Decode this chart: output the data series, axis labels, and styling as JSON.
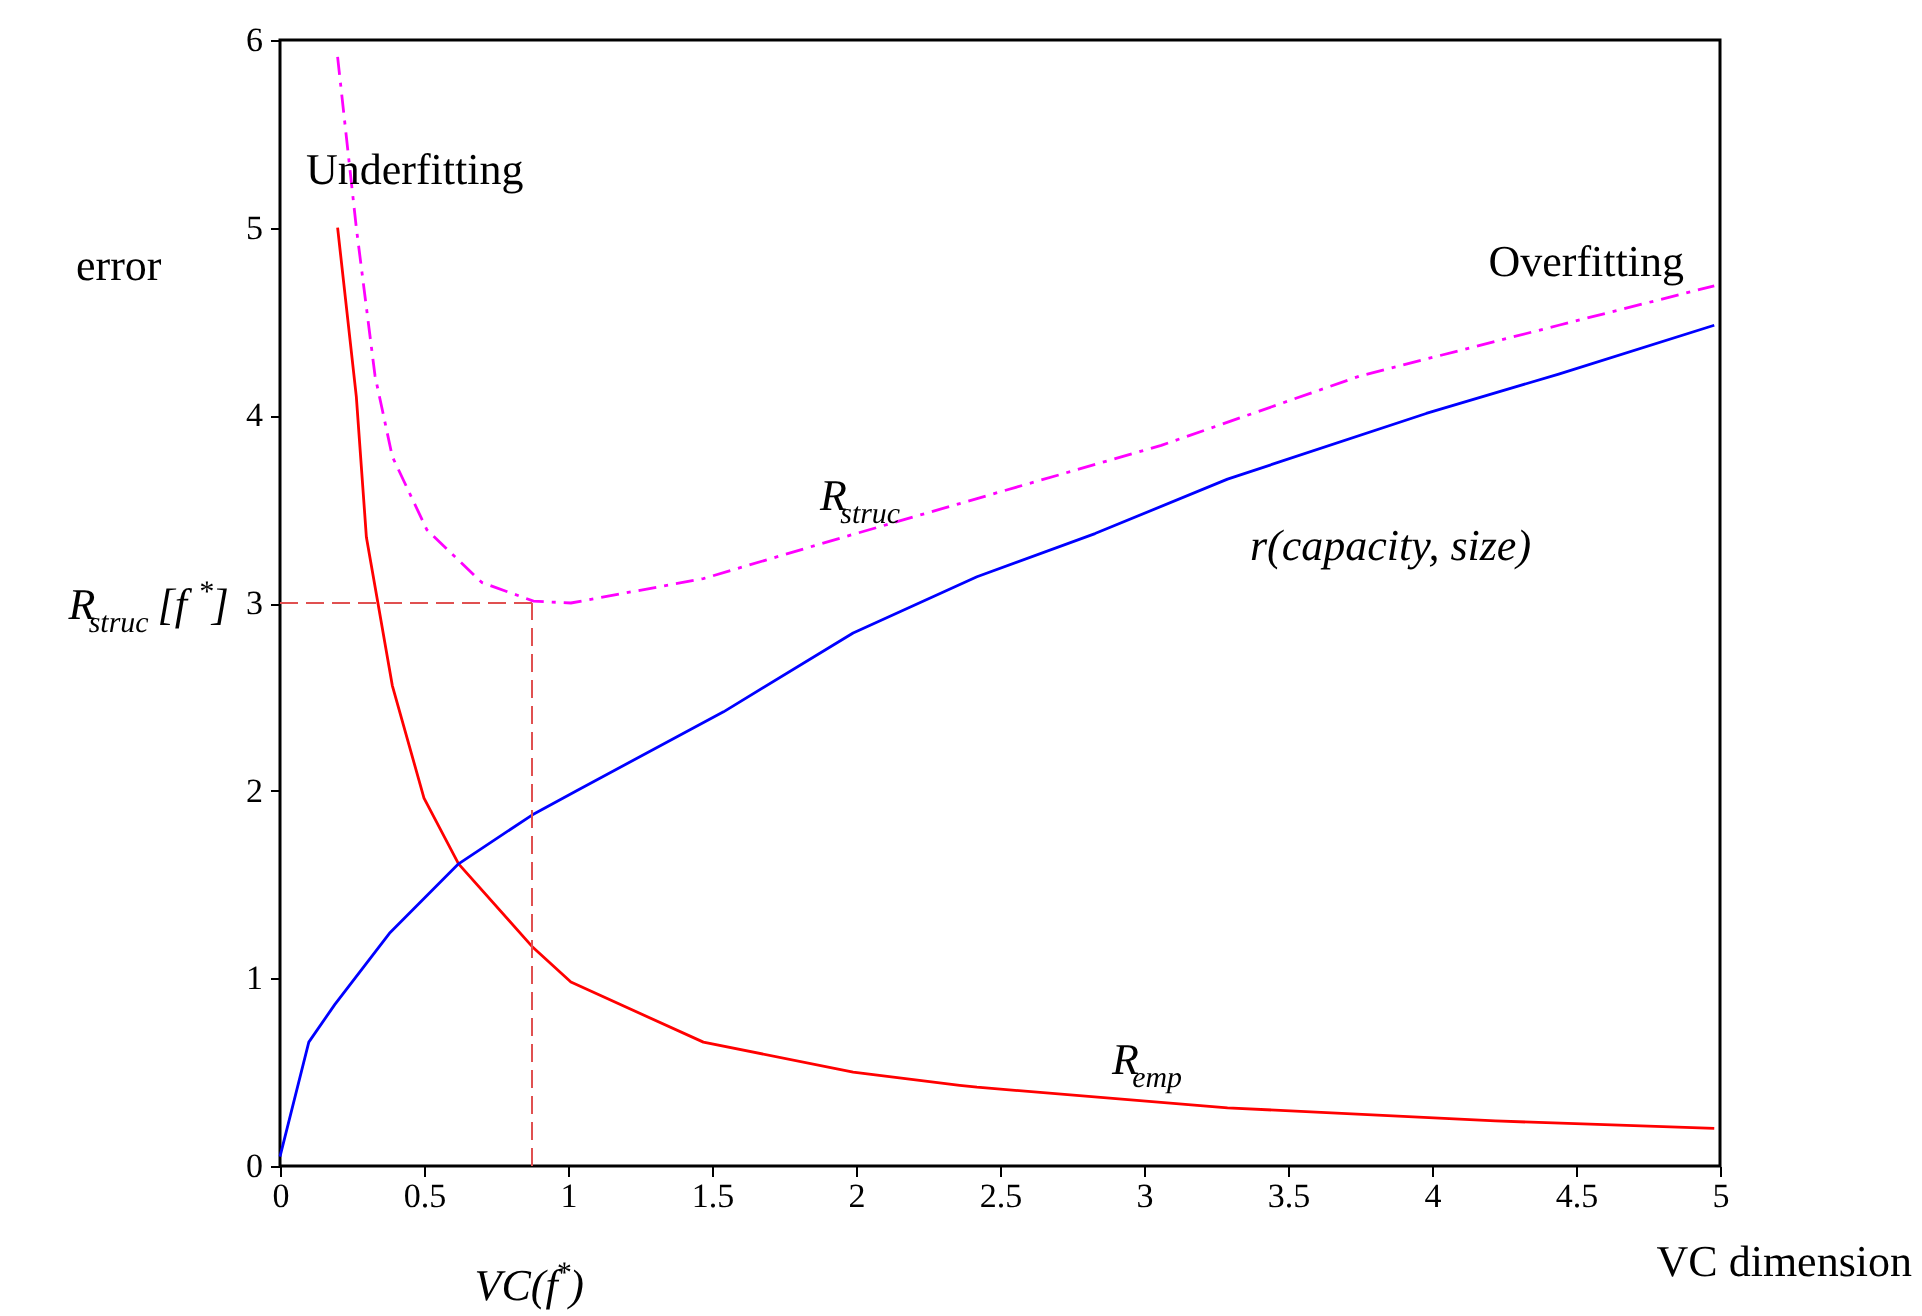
{
  "chart_data": {
    "type": "line",
    "xlabel": "VC dimension",
    "ylabel": "error",
    "xlim": [
      0,
      5
    ],
    "ylim": [
      0,
      6
    ],
    "xticks": [
      0,
      0.5,
      1,
      1.5,
      2,
      2.5,
      3,
      3.5,
      4,
      4.5,
      5
    ],
    "yticks": [
      0,
      1,
      2,
      3,
      4,
      5,
      6
    ],
    "grid": false,
    "marker": "none",
    "series": [
      {
        "name": "R$_{struc}$",
        "color": "#ff00ff",
        "line_style": "dashed",
        "x": [
          0.2,
          0.265,
          0.33,
          0.39,
          0.51,
          0.7,
          0.88,
          1.01,
          1.47,
          1.91,
          2.36,
          3.06,
          3.75,
          4.44,
          4.98
        ],
        "values": [
          5.91,
          5.0,
          4.21,
          3.78,
          3.39,
          3.11,
          3.01,
          3.0,
          3.13,
          3.33,
          3.53,
          3.84,
          4.21,
          4.48,
          4.69
        ]
      },
      {
        "name": "R$_{emp}$",
        "color": "#ff0000",
        "line_style": "solid",
        "x": [
          0.2,
          0.265,
          0.3,
          0.34,
          0.39,
          0.5,
          0.62,
          0.875,
          1.01,
          1.47,
          1.99,
          2.36,
          2.42,
          3.29,
          4.22,
          4.98
        ],
        "values": [
          5.0,
          4.1,
          3.35,
          3.0,
          2.56,
          1.96,
          1.61,
          1.17,
          0.98,
          0.66,
          0.5,
          0.43,
          0.42,
          0.31,
          0.24,
          0.2
        ]
      },
      {
        "name": "r(capacity, size)",
        "color": "#0000ff",
        "line_style": "solid",
        "x": [
          0,
          0.1,
          0.19,
          0.38,
          0.62,
          0.875,
          1.03,
          1.54,
          1.99,
          2.42,
          2.83,
          3.29,
          3.98,
          4.44,
          4.98
        ],
        "values": [
          0.05,
          0.66,
          0.86,
          1.24,
          1.61,
          1.87,
          2.0,
          2.42,
          2.84,
          3.14,
          3.37,
          3.66,
          4.01,
          4.22,
          4.48
        ]
      }
    ],
    "ref_lines": [
      {
        "axis": "y",
        "value": 3,
        "label": "R$_{struc}$[f$^{*}$]",
        "color": "#e05050",
        "line_style": "dashed"
      },
      {
        "axis": "x",
        "value": 0.875,
        "label": "VC(f$^{*}$)",
        "color": "#e05050",
        "line_style": "dashed"
      }
    ],
    "annotations": [
      "Underfitting",
      "Overfitting"
    ]
  }
}
